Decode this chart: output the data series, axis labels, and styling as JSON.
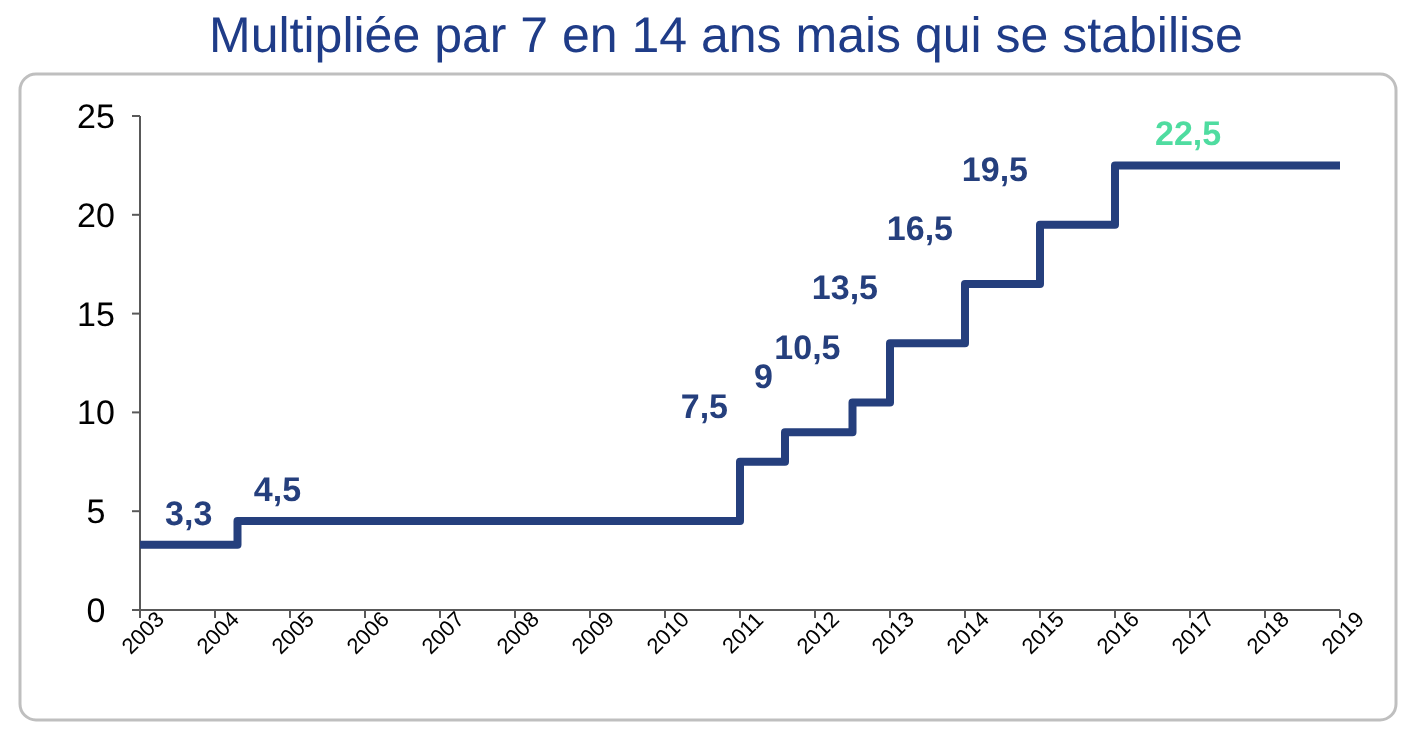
{
  "chart_data": {
    "type": "step",
    "title": "Multipliée par 7 en 14 ans mais qui se stabilise",
    "x": [
      2003,
      2004.3,
      2011,
      2011.6,
      2012.5,
      2013,
      2014,
      2015,
      2016,
      2019
    ],
    "values": [
      3.3,
      4.5,
      7.5,
      9,
      10.5,
      13.5,
      16.5,
      19.5,
      22.5,
      22.5
    ],
    "color": "#253f7d",
    "value_labels": [
      "3,3",
      "4,5",
      "7,5",
      "9",
      "10,5",
      "13,5",
      "16,5",
      "19,5",
      "22,5",
      null
    ],
    "colors": [
      "#253f7d",
      "#253f7d",
      "#253f7d",
      "#253f7d",
      "#253f7d",
      "#253f7d",
      "#253f7d",
      "#253f7d",
      "#4fdca0",
      null
    ],
    "xlim": [
      2003,
      2019
    ],
    "xticks": [
      2003,
      2004,
      2005,
      2006,
      2007,
      2008,
      2009,
      2010,
      2011,
      2012,
      2013,
      2014,
      2015,
      2016,
      2017,
      2018,
      2019
    ],
    "ylim": [
      0,
      25
    ],
    "yticks": [
      0,
      5,
      10,
      15,
      20,
      25
    ],
    "grid": false
  }
}
